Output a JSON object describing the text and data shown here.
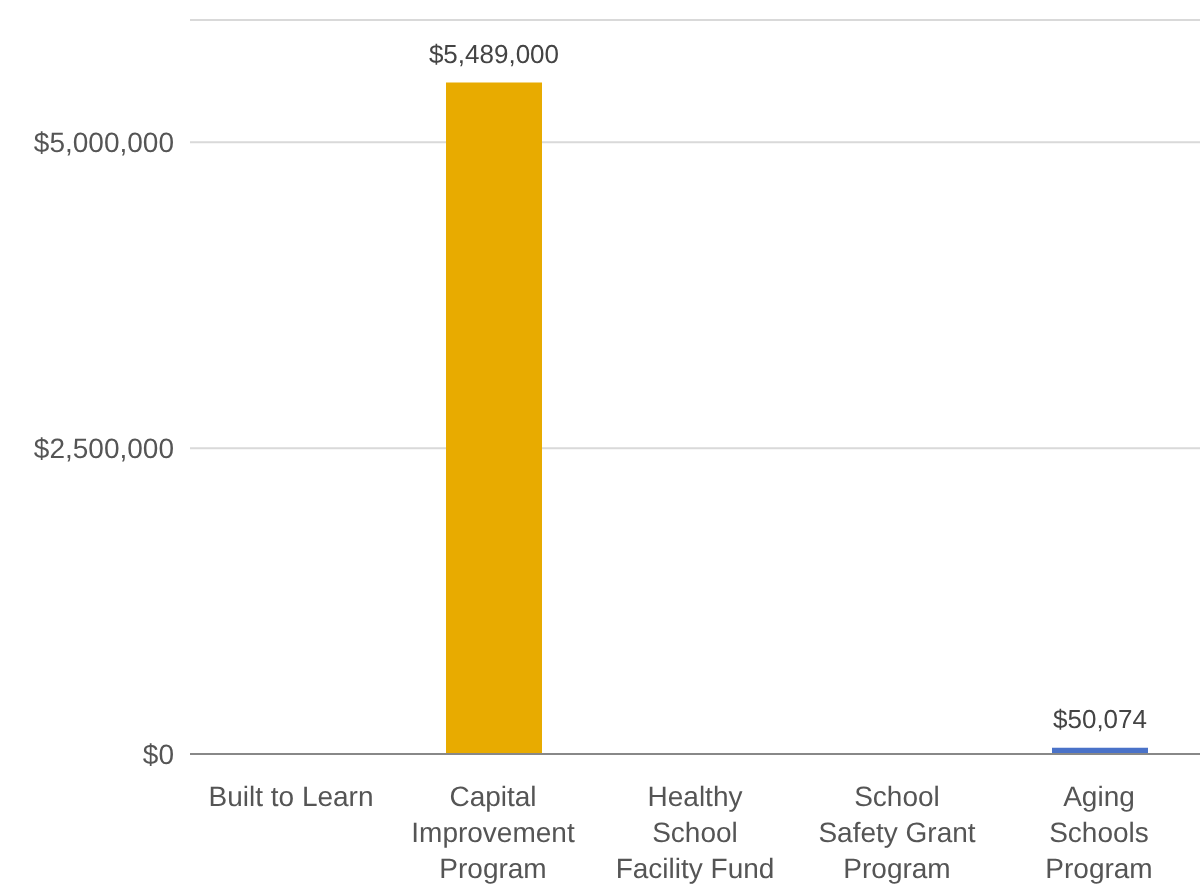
{
  "chart_data": {
    "type": "bar",
    "categories": [
      "Built to Learn",
      "Capital Improvement Program",
      "Healthy School Facility Fund",
      "School Safety Grant Program",
      "Aging Schools Program"
    ],
    "values": [
      null,
      5489000,
      null,
      null,
      50074
    ],
    "colors": [
      null,
      "#e8ab00",
      null,
      null,
      "#4a72c8"
    ],
    "value_labels": [
      null,
      "$5,489,000",
      null,
      null,
      "$50,074"
    ],
    "ylim": [
      0,
      6000000
    ],
    "yticks": [
      {
        "value": 0,
        "label": "$0"
      },
      {
        "value": 2500000,
        "label": "$2,500,000"
      },
      {
        "value": 5000000,
        "label": "$5,000,000"
      }
    ],
    "grid": "y",
    "legend": false
  }
}
